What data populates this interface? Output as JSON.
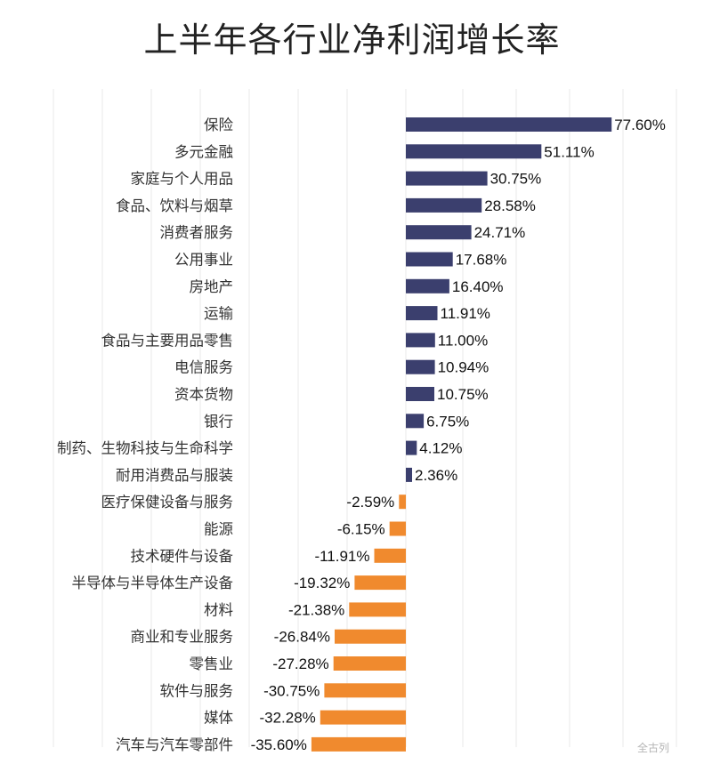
{
  "watermark_bottom": "全古列",
  "chart_data": {
    "type": "bar",
    "orientation": "horizontal",
    "title": "上半年各行业净利润增长率",
    "categories": [
      "保险",
      "多元金融",
      "家庭与个人用品",
      "食品、饮料与烟草",
      "消费者服务",
      "公用事业",
      "房地产",
      "运输",
      "食品与主要用品零售",
      "电信服务",
      "资本货物",
      "银行",
      "制药、生物科技与生命科学",
      "耐用消费品与服装",
      "医疗保健设备与服务",
      "能源",
      "技术硬件与设备",
      "半导体与半导体生产设备",
      "材料",
      "商业和专业服务",
      "零售业",
      "软件与服务",
      "媒体",
      "汽车与汽车零部件"
    ],
    "values": [
      77.6,
      51.11,
      30.75,
      28.58,
      24.71,
      17.68,
      16.4,
      11.91,
      11.0,
      10.94,
      10.75,
      6.75,
      4.12,
      2.36,
      -2.59,
      -6.15,
      -11.91,
      -19.32,
      -21.38,
      -26.84,
      -27.28,
      -30.75,
      -32.28,
      -35.6
    ],
    "value_labels": [
      "77.60%",
      "51.11%",
      "30.75%",
      "28.58%",
      "24.71%",
      "17.68%",
      "16.40%",
      "11.91%",
      "11.00%",
      "10.94%",
      "10.75%",
      "6.75%",
      "4.12%",
      "2.36%",
      "-2.59%",
      "-6.15%",
      "-11.91%",
      "-19.32%",
      "-21.38%",
      "-26.84%",
      "-27.28%",
      "-30.75%",
      "-32.28%",
      "-35.60%"
    ],
    "xlim": [
      -40,
      80
    ],
    "colors": {
      "positive": "#3b3f6e",
      "negative": "#f08a2e",
      "gridline": "#e9e9e9"
    },
    "grid": true,
    "legend": "none"
  }
}
